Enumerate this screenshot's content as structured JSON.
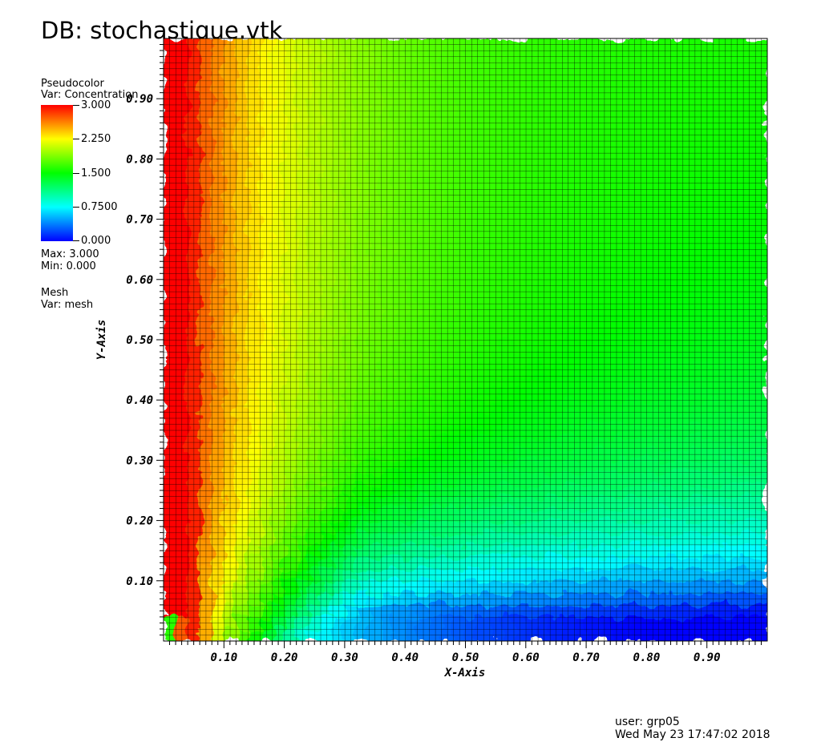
{
  "header": {
    "title": "DB: stochastique.vtk"
  },
  "legend": {
    "plot_type": "Pseudocolor",
    "variable": "Var: Concentration",
    "colorbar_labels": [
      "3.000",
      "2.250",
      "1.500",
      "0.7500",
      "0.000"
    ],
    "max_label": "Max:  3.000",
    "min_label": "Min:  0.000",
    "mesh_label": "Mesh",
    "mesh_var": "Var: mesh",
    "colors": [
      "#ff0000",
      "#ffff00",
      "#00ff00",
      "#00ffff",
      "#0000ff"
    ]
  },
  "footer": {
    "user": "user: grp05",
    "date": "Wed May 23 17:47:02 2018"
  },
  "chart_data": {
    "type": "heatmap",
    "title": "DB: stochastique.vtk",
    "xlabel": "X-Axis",
    "ylabel": "Y-Axis",
    "xlim": [
      0,
      1
    ],
    "ylim": [
      0,
      1
    ],
    "x_ticks": [
      "0.10",
      "0.20",
      "0.30",
      "0.40",
      "0.50",
      "0.60",
      "0.70",
      "0.80",
      "0.90"
    ],
    "y_ticks": [
      "0.10",
      "0.20",
      "0.30",
      "0.40",
      "0.50",
      "0.60",
      "0.70",
      "0.80",
      "0.90"
    ],
    "variable": "Concentration",
    "value_range": [
      0,
      3
    ],
    "mesh_cells": [
      100,
      100
    ],
    "grid": true,
    "colormap": [
      "#0000ff",
      "#00ffff",
      "#00ff00",
      "#ffff00",
      "#ff0000"
    ]
  }
}
